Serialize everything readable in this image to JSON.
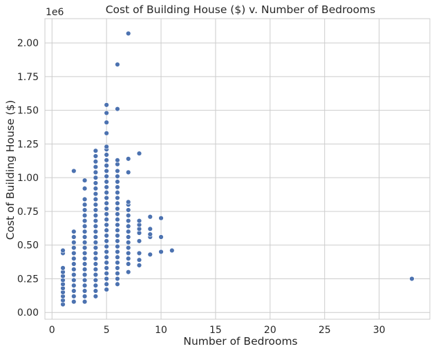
{
  "chart_data": {
    "type": "scatter",
    "title": "Cost of Building House ($) v. Number of Bedrooms",
    "xlabel": "Number of Bedrooms",
    "ylabel": "Cost of Building House ($)",
    "y_offset_label": "1e6",
    "xlim": [
      -0.65,
      34.65
    ],
    "ylim": [
      -0.05,
      2.18
    ],
    "x_ticks": [
      0,
      5,
      10,
      15,
      20,
      25,
      30
    ],
    "x_tick_labels": [
      "0",
      "5",
      "10",
      "15",
      "20",
      "25",
      "30"
    ],
    "y_ticks": [
      0.0,
      0.25,
      0.5,
      0.75,
      1.0,
      1.25,
      1.5,
      1.75,
      2.0
    ],
    "y_tick_labels": [
      "0.00",
      "0.25",
      "0.50",
      "0.75",
      "1.00",
      "1.25",
      "1.50",
      "1.75",
      "2.00"
    ],
    "grid": true,
    "marker_color": "#4c72b0",
    "marker_edge_color": "#ffffff",
    "series": [
      {
        "name": "",
        "points": [
          [
            1,
            0.06
          ],
          [
            1,
            0.09
          ],
          [
            1,
            0.12
          ],
          [
            1,
            0.15
          ],
          [
            1,
            0.18
          ],
          [
            1,
            0.21
          ],
          [
            1,
            0.24
          ],
          [
            1,
            0.27
          ],
          [
            1,
            0.3
          ],
          [
            1,
            0.33
          ],
          [
            1,
            0.44
          ],
          [
            1,
            0.46
          ],
          [
            2,
            0.08
          ],
          [
            2,
            0.12
          ],
          [
            2,
            0.16
          ],
          [
            2,
            0.2
          ],
          [
            2,
            0.24
          ],
          [
            2,
            0.28
          ],
          [
            2,
            0.32
          ],
          [
            2,
            0.36
          ],
          [
            2,
            0.4
          ],
          [
            2,
            0.44
          ],
          [
            2,
            0.48
          ],
          [
            2,
            0.52
          ],
          [
            2,
            0.56
          ],
          [
            2,
            0.6
          ],
          [
            2,
            1.05
          ],
          [
            3,
            0.08
          ],
          [
            3,
            0.12
          ],
          [
            3,
            0.16
          ],
          [
            3,
            0.2
          ],
          [
            3,
            0.24
          ],
          [
            3,
            0.28
          ],
          [
            3,
            0.32
          ],
          [
            3,
            0.36
          ],
          [
            3,
            0.4
          ],
          [
            3,
            0.44
          ],
          [
            3,
            0.48
          ],
          [
            3,
            0.52
          ],
          [
            3,
            0.56
          ],
          [
            3,
            0.6
          ],
          [
            3,
            0.64
          ],
          [
            3,
            0.68
          ],
          [
            3,
            0.72
          ],
          [
            3,
            0.76
          ],
          [
            3,
            0.8
          ],
          [
            3,
            0.84
          ],
          [
            3,
            0.92
          ],
          [
            3,
            0.98
          ],
          [
            4,
            0.12
          ],
          [
            4,
            0.16
          ],
          [
            4,
            0.2
          ],
          [
            4,
            0.24
          ],
          [
            4,
            0.28
          ],
          [
            4,
            0.32
          ],
          [
            4,
            0.36
          ],
          [
            4,
            0.4
          ],
          [
            4,
            0.44
          ],
          [
            4,
            0.48
          ],
          [
            4,
            0.52
          ],
          [
            4,
            0.56
          ],
          [
            4,
            0.6
          ],
          [
            4,
            0.64
          ],
          [
            4,
            0.68
          ],
          [
            4,
            0.72
          ],
          [
            4,
            0.76
          ],
          [
            4,
            0.8
          ],
          [
            4,
            0.84
          ],
          [
            4,
            0.88
          ],
          [
            4,
            0.92
          ],
          [
            4,
            0.96
          ],
          [
            4,
            1.0
          ],
          [
            4,
            1.04
          ],
          [
            4,
            1.08
          ],
          [
            4,
            1.12
          ],
          [
            4,
            1.16
          ],
          [
            4,
            1.2
          ],
          [
            5,
            0.17
          ],
          [
            5,
            0.21
          ],
          [
            5,
            0.25
          ],
          [
            5,
            0.29
          ],
          [
            5,
            0.33
          ],
          [
            5,
            0.37
          ],
          [
            5,
            0.41
          ],
          [
            5,
            0.45
          ],
          [
            5,
            0.49
          ],
          [
            5,
            0.53
          ],
          [
            5,
            0.57
          ],
          [
            5,
            0.61
          ],
          [
            5,
            0.65
          ],
          [
            5,
            0.69
          ],
          [
            5,
            0.73
          ],
          [
            5,
            0.77
          ],
          [
            5,
            0.81
          ],
          [
            5,
            0.85
          ],
          [
            5,
            0.89
          ],
          [
            5,
            0.93
          ],
          [
            5,
            0.97
          ],
          [
            5,
            1.01
          ],
          [
            5,
            1.05
          ],
          [
            5,
            1.09
          ],
          [
            5,
            1.13
          ],
          [
            5,
            1.17
          ],
          [
            5,
            1.21
          ],
          [
            5,
            1.23
          ],
          [
            5,
            1.33
          ],
          [
            5,
            1.41
          ],
          [
            5,
            1.48
          ],
          [
            5,
            1.54
          ],
          [
            6,
            0.21
          ],
          [
            6,
            0.25
          ],
          [
            6,
            0.29
          ],
          [
            6,
            0.33
          ],
          [
            6,
            0.37
          ],
          [
            6,
            0.41
          ],
          [
            6,
            0.45
          ],
          [
            6,
            0.49
          ],
          [
            6,
            0.53
          ],
          [
            6,
            0.57
          ],
          [
            6,
            0.61
          ],
          [
            6,
            0.65
          ],
          [
            6,
            0.69
          ],
          [
            6,
            0.73
          ],
          [
            6,
            0.77
          ],
          [
            6,
            0.81
          ],
          [
            6,
            0.85
          ],
          [
            6,
            0.89
          ],
          [
            6,
            0.93
          ],
          [
            6,
            0.97
          ],
          [
            6,
            1.01
          ],
          [
            6,
            1.05
          ],
          [
            6,
            1.1
          ],
          [
            6,
            1.13
          ],
          [
            6,
            1.51
          ],
          [
            6,
            1.84
          ],
          [
            7,
            0.3
          ],
          [
            7,
            0.36
          ],
          [
            7,
            0.4
          ],
          [
            7,
            0.44
          ],
          [
            7,
            0.48
          ],
          [
            7,
            0.52
          ],
          [
            7,
            0.56
          ],
          [
            7,
            0.6
          ],
          [
            7,
            0.64
          ],
          [
            7,
            0.68
          ],
          [
            7,
            0.72
          ],
          [
            7,
            0.76
          ],
          [
            7,
            0.8
          ],
          [
            7,
            0.82
          ],
          [
            7,
            1.04
          ],
          [
            7,
            1.14
          ],
          [
            7,
            2.07
          ],
          [
            8,
            0.35
          ],
          [
            8,
            0.39
          ],
          [
            8,
            0.44
          ],
          [
            8,
            0.53
          ],
          [
            8,
            0.59
          ],
          [
            8,
            0.62
          ],
          [
            8,
            0.65
          ],
          [
            8,
            0.68
          ],
          [
            8,
            1.18
          ],
          [
            9,
            0.43
          ],
          [
            9,
            0.56
          ],
          [
            9,
            0.58
          ],
          [
            9,
            0.62
          ],
          [
            9,
            0.71
          ],
          [
            10,
            0.45
          ],
          [
            10,
            0.56
          ],
          [
            10,
            0.7
          ],
          [
            11,
            0.46
          ],
          [
            33,
            0.25
          ]
        ]
      }
    ]
  }
}
